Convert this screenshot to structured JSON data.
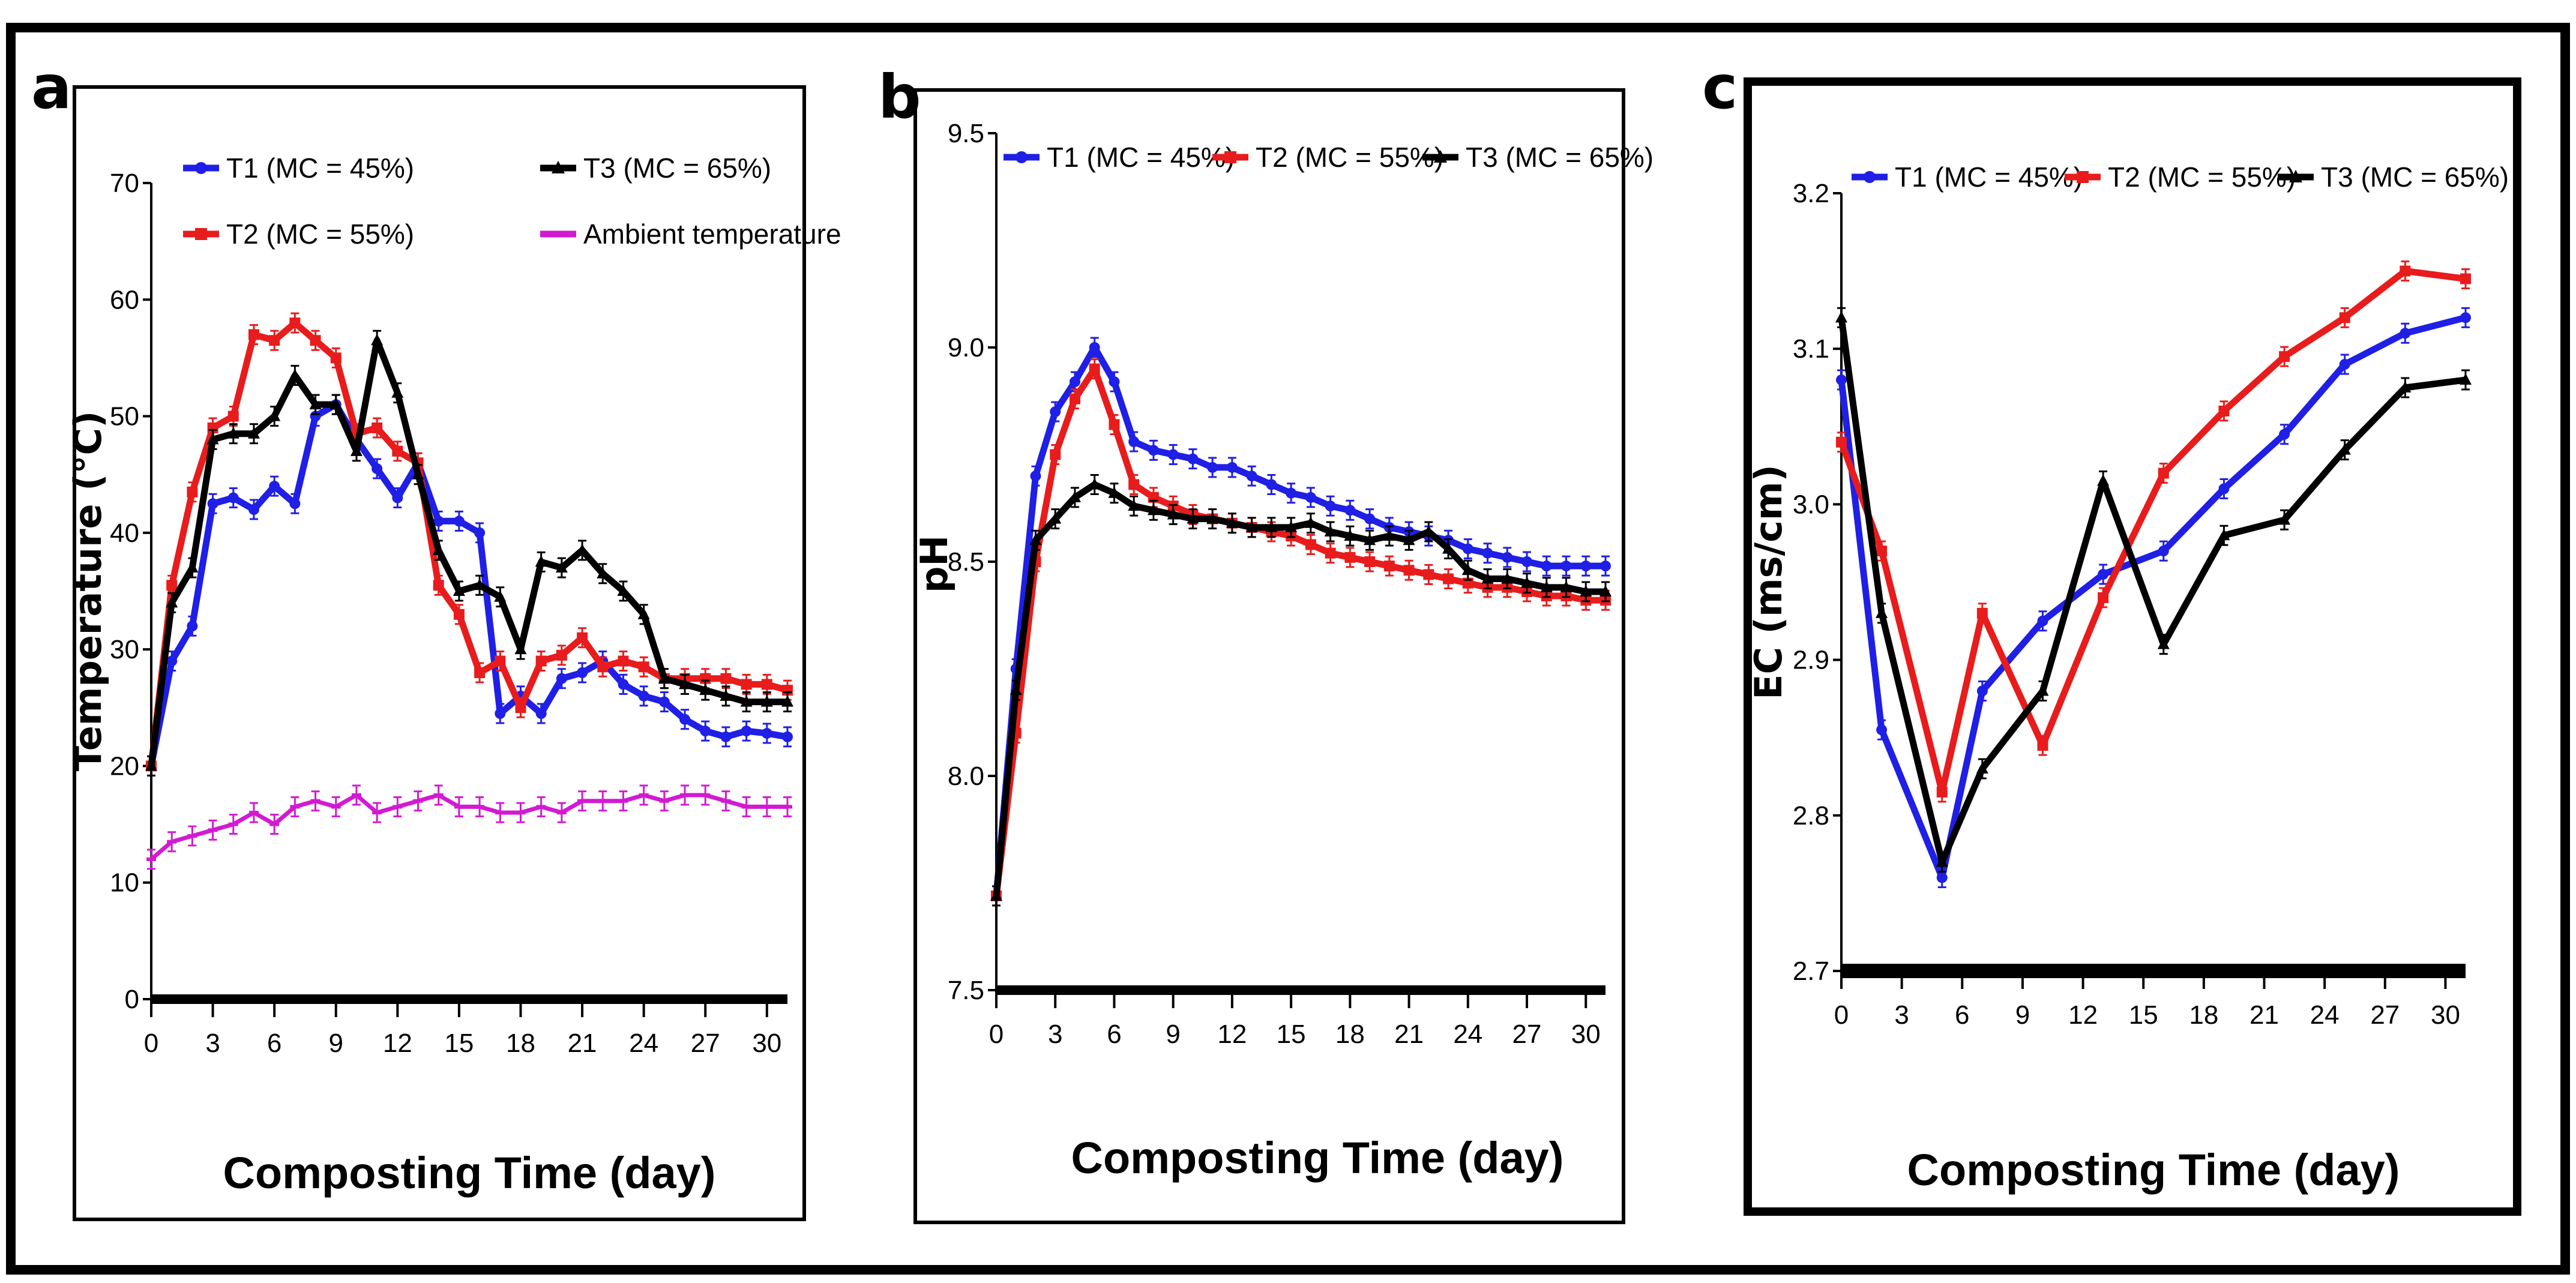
{
  "chart_data": [
    {
      "panel": "a",
      "type": "line",
      "title": "",
      "xlabel": "Composting Time (day)",
      "ylabel": "Temperature (°C)",
      "xlim": [
        0,
        31
      ],
      "ylim": [
        0,
        70
      ],
      "xticks": [
        0,
        3,
        6,
        9,
        12,
        15,
        18,
        21,
        24,
        27,
        30
      ],
      "yticks": [
        0,
        10,
        20,
        30,
        40,
        50,
        60,
        70
      ],
      "legend_location": "top",
      "series": [
        {
          "name": "T1 (MC = 45%)",
          "color": "#1f1fe6",
          "marker": "circle",
          "x": [
            0,
            1,
            2,
            3,
            4,
            5,
            6,
            7,
            8,
            9,
            10,
            11,
            12,
            13,
            14,
            15,
            16,
            17,
            18,
            19,
            20,
            21,
            22,
            23,
            24,
            25,
            26,
            27,
            28,
            29,
            30,
            31
          ],
          "y": [
            20,
            29,
            32,
            42.5,
            43,
            42,
            44,
            42.5,
            50,
            51,
            48,
            45.5,
            43,
            46,
            41,
            41,
            40,
            24.5,
            26,
            24.5,
            27.5,
            28,
            29,
            27,
            26,
            25.5,
            24,
            23,
            22.5,
            23,
            22.8,
            22.5
          ]
        },
        {
          "name": "T2 (MC = 55%)",
          "color": "#e81c1c",
          "marker": "square",
          "x": [
            0,
            1,
            2,
            3,
            4,
            5,
            6,
            7,
            8,
            9,
            10,
            11,
            12,
            13,
            14,
            15,
            16,
            17,
            18,
            19,
            20,
            21,
            22,
            23,
            24,
            25,
            26,
            27,
            28,
            29,
            30,
            31
          ],
          "y": [
            20,
            35.5,
            43.5,
            49,
            50,
            57,
            56.5,
            58,
            56.5,
            55,
            48.5,
            49,
            47,
            46,
            35.5,
            33,
            28,
            29,
            25,
            29,
            29.5,
            31,
            28.5,
            29,
            28.5,
            27.5,
            27.5,
            27.5,
            27.5,
            27,
            27,
            26.5
          ]
        },
        {
          "name": "T3 (MC = 65%)",
          "color": "#000000",
          "marker": "triangle",
          "x": [
            0,
            1,
            2,
            3,
            4,
            5,
            6,
            7,
            8,
            9,
            10,
            11,
            12,
            13,
            14,
            15,
            16,
            17,
            18,
            19,
            20,
            21,
            22,
            23,
            24,
            25,
            26,
            27,
            28,
            29,
            30,
            31
          ],
          "y": [
            20,
            34,
            37,
            48,
            48.5,
            48.5,
            50,
            53.5,
            51,
            51,
            47,
            56.5,
            52,
            45,
            38.5,
            35,
            35.5,
            34.5,
            30,
            37.5,
            37,
            38.5,
            36.5,
            35,
            33,
            27.5,
            27,
            26.5,
            26,
            25.5,
            25.5,
            25.5
          ]
        },
        {
          "name": "Ambient temperature",
          "color": "#d21ad2",
          "marker": "dash",
          "x": [
            0,
            1,
            2,
            3,
            4,
            5,
            6,
            7,
            8,
            9,
            10,
            11,
            12,
            13,
            14,
            15,
            16,
            17,
            18,
            19,
            20,
            21,
            22,
            23,
            24,
            25,
            26,
            27,
            28,
            29,
            30,
            31
          ],
          "y": [
            12,
            13.5,
            14,
            14.5,
            15,
            16,
            15,
            16.5,
            17,
            16.5,
            17.5,
            16,
            16.5,
            17,
            17.5,
            16.5,
            16.5,
            16,
            16,
            16.5,
            16,
            17,
            17,
            17,
            17.5,
            17,
            17.5,
            17.5,
            17,
            16.5,
            16.5,
            16.5
          ]
        }
      ]
    },
    {
      "panel": "b",
      "type": "line",
      "title": "",
      "xlabel": "Composting Time (day)",
      "ylabel": "pH",
      "xlim": [
        0,
        31
      ],
      "ylim": [
        7.5,
        9.5
      ],
      "xticks": [
        0,
        3,
        6,
        9,
        12,
        15,
        18,
        21,
        24,
        27,
        30
      ],
      "yticks": [
        7.5,
        8.0,
        8.5,
        9.0,
        9.5
      ],
      "legend_location": "top",
      "series": [
        {
          "name": "T1 (MC = 45%)",
          "color": "#1f1fe6",
          "marker": "circle",
          "x": [
            0,
            1,
            2,
            3,
            4,
            5,
            6,
            7,
            8,
            9,
            10,
            11,
            12,
            13,
            14,
            15,
            16,
            17,
            18,
            19,
            20,
            21,
            22,
            23,
            24,
            25,
            26,
            27,
            28,
            29,
            30,
            31
          ],
          "y": [
            7.72,
            8.25,
            8.7,
            8.85,
            8.92,
            9.0,
            8.92,
            8.78,
            8.76,
            8.75,
            8.74,
            8.72,
            8.72,
            8.7,
            8.68,
            8.66,
            8.65,
            8.63,
            8.62,
            8.6,
            8.58,
            8.57,
            8.56,
            8.55,
            8.53,
            8.52,
            8.51,
            8.5,
            8.49,
            8.49,
            8.49,
            8.49
          ]
        },
        {
          "name": "T2 (MC = 55%)",
          "color": "#e81c1c",
          "marker": "square",
          "x": [
            0,
            1,
            2,
            3,
            4,
            5,
            6,
            7,
            8,
            9,
            10,
            11,
            12,
            13,
            14,
            15,
            16,
            17,
            18,
            19,
            20,
            21,
            22,
            23,
            24,
            25,
            26,
            27,
            28,
            29,
            30,
            31
          ],
          "y": [
            7.72,
            8.1,
            8.5,
            8.75,
            8.88,
            8.95,
            8.82,
            8.68,
            8.65,
            8.63,
            8.61,
            8.6,
            8.59,
            8.58,
            8.57,
            8.56,
            8.54,
            8.52,
            8.51,
            8.5,
            8.49,
            8.48,
            8.47,
            8.46,
            8.45,
            8.44,
            8.44,
            8.43,
            8.42,
            8.42,
            8.41,
            8.41
          ]
        },
        {
          "name": "T3 (MC = 65%)",
          "color": "#000000",
          "marker": "triangle",
          "x": [
            0,
            1,
            2,
            3,
            4,
            5,
            6,
            7,
            8,
            9,
            10,
            11,
            12,
            13,
            14,
            15,
            16,
            17,
            18,
            19,
            20,
            21,
            22,
            23,
            24,
            25,
            26,
            27,
            28,
            29,
            30,
            31
          ],
          "y": [
            7.72,
            8.2,
            8.55,
            8.6,
            8.65,
            8.68,
            8.66,
            8.63,
            8.62,
            8.61,
            8.6,
            8.6,
            8.59,
            8.58,
            8.58,
            8.58,
            8.59,
            8.57,
            8.56,
            8.55,
            8.56,
            8.55,
            8.57,
            8.53,
            8.48,
            8.46,
            8.46,
            8.45,
            8.44,
            8.44,
            8.43,
            8.43
          ]
        }
      ]
    },
    {
      "panel": "c",
      "type": "line",
      "title": "",
      "xlabel": "Composting Time (day)",
      "ylabel": "EC (ms/cm)",
      "xlim": [
        0,
        31
      ],
      "ylim": [
        2.7,
        3.2
      ],
      "xticks": [
        0,
        3,
        6,
        9,
        12,
        15,
        18,
        21,
        24,
        27,
        30
      ],
      "yticks": [
        2.7,
        2.8,
        2.9,
        3.0,
        3.1,
        3.2
      ],
      "legend_location": "top",
      "series": [
        {
          "name": "T1 (MC = 45%)",
          "color": "#1f1fe6",
          "marker": "circle",
          "x": [
            0,
            2,
            5,
            7,
            10,
            13,
            16,
            19,
            22,
            25,
            28,
            31
          ],
          "y": [
            3.08,
            2.855,
            2.76,
            2.88,
            2.925,
            2.955,
            2.97,
            3.01,
            3.045,
            3.09,
            3.11,
            3.12
          ]
        },
        {
          "name": "T2 (MC = 55%)",
          "color": "#e81c1c",
          "marker": "square",
          "x": [
            0,
            2,
            5,
            7,
            10,
            13,
            16,
            19,
            22,
            25,
            28,
            31
          ],
          "y": [
            3.04,
            2.97,
            2.815,
            2.93,
            2.845,
            2.94,
            3.02,
            3.06,
            3.095,
            3.12,
            3.15,
            3.145
          ]
        },
        {
          "name": "T3 (MC = 65%)",
          "color": "#000000",
          "marker": "triangle",
          "x": [
            0,
            2,
            5,
            7,
            10,
            13,
            16,
            19,
            22,
            25,
            28,
            31
          ],
          "y": [
            3.12,
            2.93,
            2.77,
            2.83,
            2.88,
            3.015,
            2.91,
            2.98,
            2.99,
            3.035,
            3.075,
            3.08
          ]
        }
      ]
    }
  ]
}
